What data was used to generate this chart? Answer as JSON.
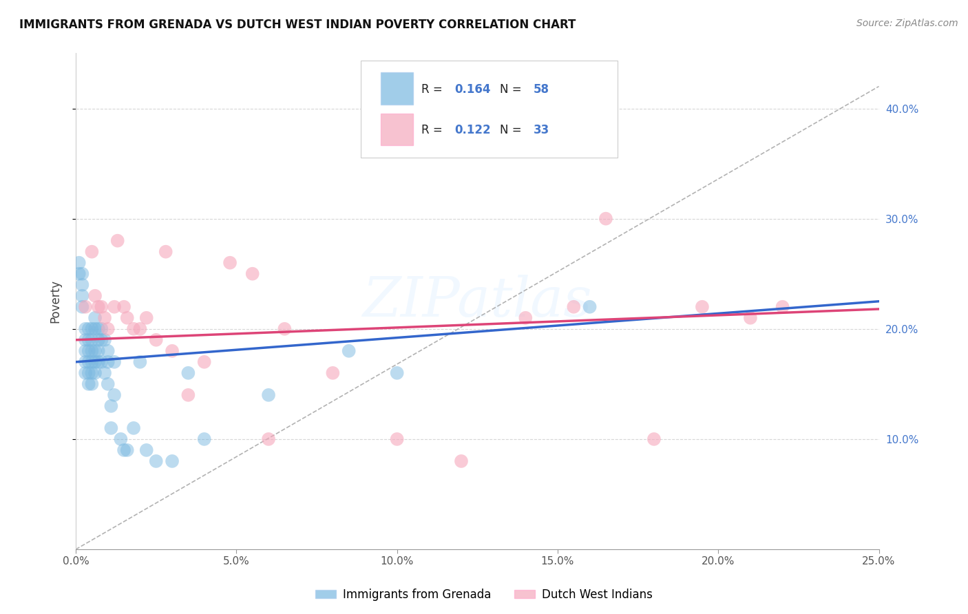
{
  "title": "IMMIGRANTS FROM GRENADA VS DUTCH WEST INDIAN POVERTY CORRELATION CHART",
  "source": "Source: ZipAtlas.com",
  "ylabel": "Poverty",
  "xlim": [
    0,
    0.25
  ],
  "ylim": [
    0,
    0.45
  ],
  "xticks": [
    0.0,
    0.05,
    0.1,
    0.15,
    0.2,
    0.25
  ],
  "xtick_labels": [
    "0.0%",
    "5.0%",
    "10.0%",
    "15.0%",
    "20.0%",
    "25.0%"
  ],
  "ytick_vals": [
    0.1,
    0.2,
    0.3,
    0.4
  ],
  "ytick_labels_right": [
    "10.0%",
    "20.0%",
    "30.0%",
    "40.0%"
  ],
  "legend_r1": "R = 0.164",
  "legend_n1": "N = 58",
  "legend_r2": "R = 0.122",
  "legend_n2": "N = 33",
  "blue_color": "#7ab8e0",
  "pink_color": "#f5a8bc",
  "blue_line_color": "#3366cc",
  "pink_line_color": "#dd4477",
  "dash_color": "#aaaaaa",
  "blue_scatter_x": [
    0.001,
    0.001,
    0.002,
    0.002,
    0.002,
    0.002,
    0.003,
    0.003,
    0.003,
    0.003,
    0.003,
    0.004,
    0.004,
    0.004,
    0.004,
    0.004,
    0.004,
    0.005,
    0.005,
    0.005,
    0.005,
    0.005,
    0.005,
    0.006,
    0.006,
    0.006,
    0.006,
    0.006,
    0.007,
    0.007,
    0.007,
    0.007,
    0.008,
    0.008,
    0.008,
    0.009,
    0.009,
    0.01,
    0.01,
    0.01,
    0.011,
    0.011,
    0.012,
    0.012,
    0.014,
    0.015,
    0.016,
    0.018,
    0.02,
    0.022,
    0.025,
    0.03,
    0.035,
    0.04,
    0.06,
    0.085,
    0.1,
    0.16
  ],
  "blue_scatter_y": [
    0.26,
    0.25,
    0.25,
    0.24,
    0.23,
    0.22,
    0.2,
    0.19,
    0.18,
    0.17,
    0.16,
    0.2,
    0.19,
    0.18,
    0.17,
    0.16,
    0.15,
    0.2,
    0.19,
    0.18,
    0.17,
    0.16,
    0.15,
    0.21,
    0.2,
    0.18,
    0.17,
    0.16,
    0.2,
    0.19,
    0.18,
    0.17,
    0.2,
    0.19,
    0.17,
    0.19,
    0.16,
    0.18,
    0.17,
    0.15,
    0.13,
    0.11,
    0.17,
    0.14,
    0.1,
    0.09,
    0.09,
    0.11,
    0.17,
    0.09,
    0.08,
    0.08,
    0.16,
    0.1,
    0.14,
    0.18,
    0.16,
    0.22
  ],
  "pink_scatter_x": [
    0.003,
    0.005,
    0.006,
    0.007,
    0.008,
    0.009,
    0.01,
    0.012,
    0.013,
    0.015,
    0.016,
    0.018,
    0.02,
    0.022,
    0.025,
    0.028,
    0.03,
    0.035,
    0.04,
    0.048,
    0.055,
    0.06,
    0.065,
    0.08,
    0.1,
    0.12,
    0.14,
    0.155,
    0.165,
    0.18,
    0.195,
    0.21,
    0.22
  ],
  "pink_scatter_y": [
    0.22,
    0.27,
    0.23,
    0.22,
    0.22,
    0.21,
    0.2,
    0.22,
    0.28,
    0.22,
    0.21,
    0.2,
    0.2,
    0.21,
    0.19,
    0.27,
    0.18,
    0.14,
    0.17,
    0.26,
    0.25,
    0.1,
    0.2,
    0.16,
    0.1,
    0.08,
    0.21,
    0.22,
    0.3,
    0.1,
    0.22,
    0.21,
    0.22
  ],
  "blue_line_x": [
    0.0,
    0.25
  ],
  "blue_line_y": [
    0.17,
    0.225
  ],
  "pink_line_x": [
    0.0,
    0.25
  ],
  "pink_line_y": [
    0.19,
    0.218
  ],
  "dash_line_x": [
    0.0,
    0.25
  ],
  "dash_line_y": [
    0.0,
    0.42
  ],
  "watermark": "ZIPatlas"
}
